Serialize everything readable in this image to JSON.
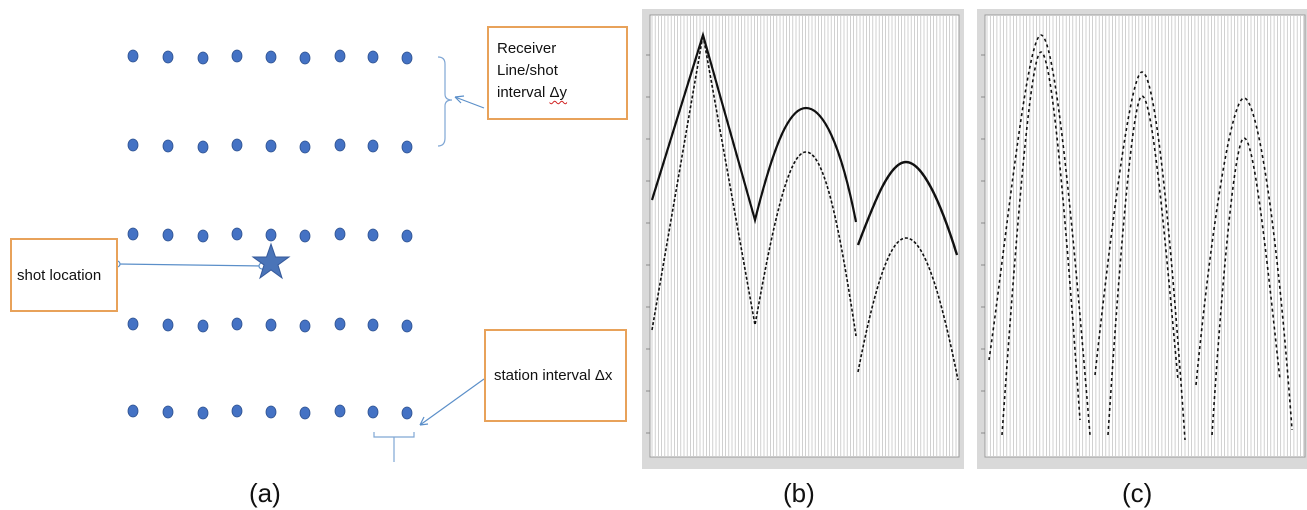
{
  "panel_a": {
    "receiver_box": {
      "line1": "Receiver Line/shot",
      "line2_prefix": "interval ",
      "line2_symbol": "Δy"
    },
    "shot_box": {
      "label": "shot location"
    },
    "station_box": {
      "label": "station interval Δx"
    },
    "grid": {
      "rows": 5,
      "columns": 9
    },
    "colors": {
      "dot": "#4472c4",
      "dot_stroke": "#2f528f",
      "star": "#4a74b8",
      "box_border": "#e8a25a",
      "arrow": "#5b8fc9"
    }
  },
  "panel_b": {
    "sweeps": 4,
    "events": 4
  },
  "panel_c": {
    "sweeps": 3,
    "events": 6
  },
  "captions": {
    "a": "(a)",
    "b": "(b)",
    "c": "(c)"
  }
}
